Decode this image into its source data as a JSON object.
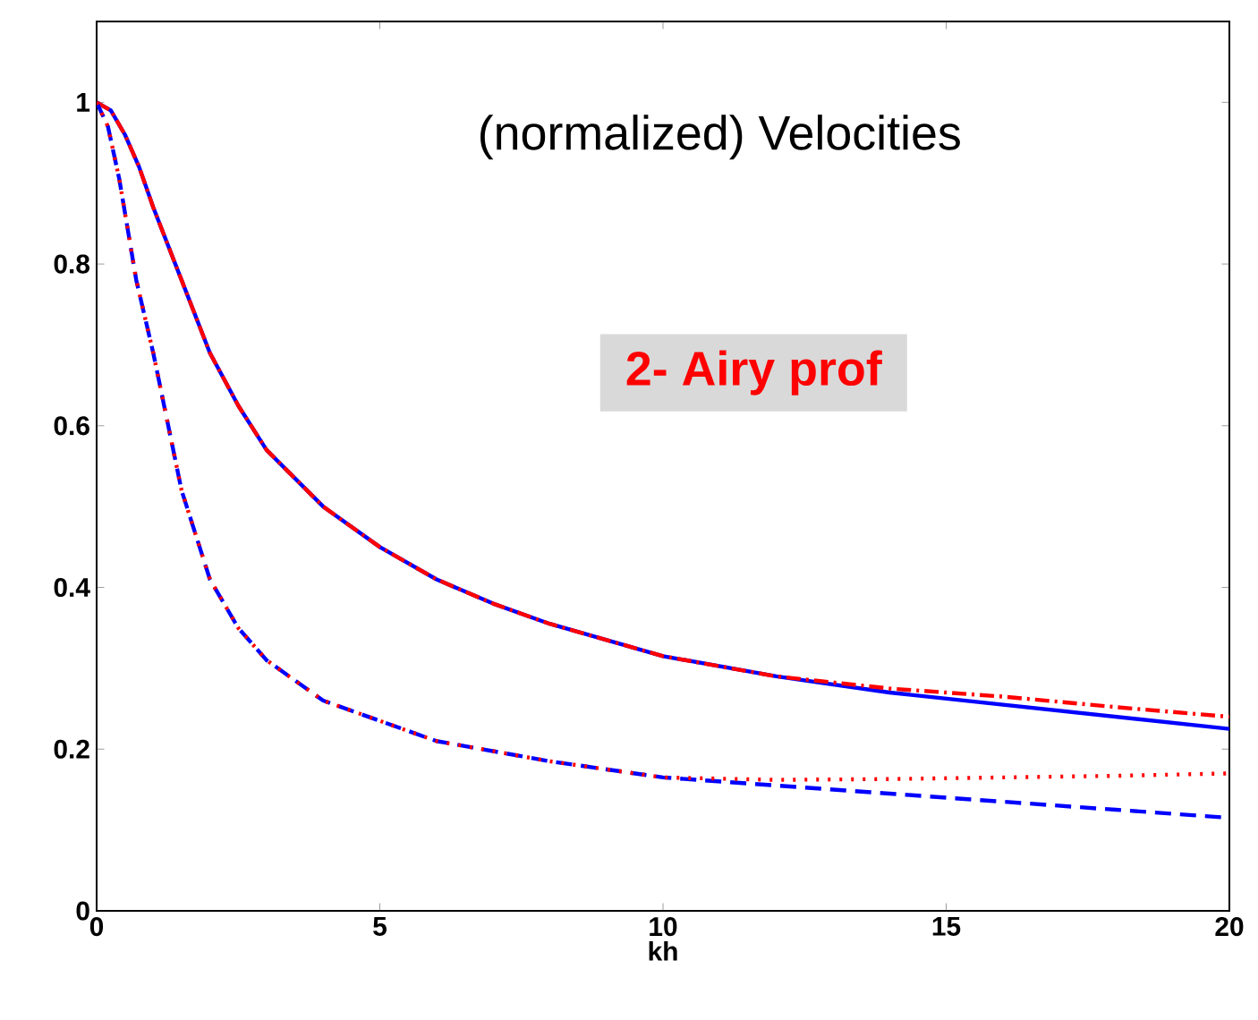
{
  "chart_data": {
    "type": "line",
    "xlabel": "kh",
    "xlim": [
      0,
      20
    ],
    "ylim": [
      0,
      1.1
    ],
    "xticks": [
      0,
      5,
      10,
      15,
      20
    ],
    "yticks": [
      0,
      0.2,
      0.4,
      0.6,
      0.8,
      1
    ],
    "grid": false,
    "annotations": [
      "(normalized) Velocities",
      "2- Airy prof"
    ],
    "series": [
      {
        "color": "#0000ff",
        "line_style": "solid",
        "x": [
          0,
          0.25,
          0.5,
          0.75,
          1,
          1.25,
          1.5,
          2,
          2.5,
          3,
          4,
          5,
          6,
          7,
          8,
          10,
          12,
          14,
          16,
          18,
          20
        ],
        "values": [
          1,
          0.99,
          0.96,
          0.92,
          0.87,
          0.825,
          0.78,
          0.69,
          0.625,
          0.57,
          0.5,
          0.45,
          0.41,
          0.38,
          0.355,
          0.315,
          0.29,
          0.27,
          0.255,
          0.24,
          0.225
        ]
      },
      {
        "color": "#ff0000",
        "line_style": "dashdot",
        "x": [
          0,
          0.25,
          0.5,
          0.75,
          1,
          1.25,
          1.5,
          2,
          2.5,
          3,
          4,
          5,
          6,
          7,
          8,
          10,
          12,
          14,
          16,
          18,
          20
        ],
        "values": [
          1,
          0.99,
          0.96,
          0.92,
          0.87,
          0.825,
          0.78,
          0.69,
          0.625,
          0.57,
          0.5,
          0.45,
          0.41,
          0.38,
          0.355,
          0.315,
          0.29,
          0.275,
          0.265,
          0.252,
          0.24
        ]
      },
      {
        "color": "#0000ff",
        "line_style": "dashed",
        "x": [
          0,
          0.2,
          0.4,
          0.7,
          1,
          1.5,
          2,
          2.5,
          3,
          4,
          5,
          6,
          8,
          10,
          12,
          14,
          16,
          18,
          20
        ],
        "values": [
          1,
          0.97,
          0.905,
          0.78,
          0.69,
          0.52,
          0.41,
          0.35,
          0.31,
          0.26,
          0.235,
          0.21,
          0.185,
          0.165,
          0.155,
          0.145,
          0.135,
          0.125,
          0.115
        ]
      },
      {
        "color": "#ff0000",
        "line_style": "dotted",
        "x": [
          0,
          0.2,
          0.4,
          0.7,
          1,
          1.5,
          2,
          2.5,
          3,
          4,
          5,
          6,
          8,
          10,
          12,
          14,
          16,
          18,
          20
        ],
        "values": [
          1,
          0.97,
          0.905,
          0.78,
          0.69,
          0.52,
          0.41,
          0.35,
          0.31,
          0.26,
          0.235,
          0.21,
          0.185,
          0.165,
          0.162,
          0.163,
          0.165,
          0.167,
          0.17
        ]
      }
    ]
  }
}
